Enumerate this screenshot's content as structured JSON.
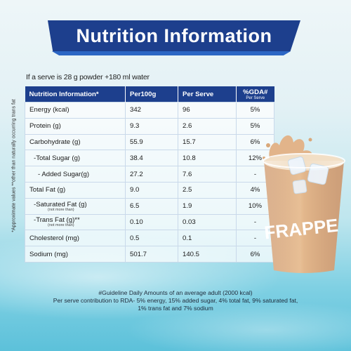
{
  "title": "Nutrition Information",
  "serve_note": "If a serve is 28 g powder +180 ml water",
  "side_note": "*Approximate values **other than naturally occurring trans fat",
  "table": {
    "headers": {
      "nutrient": "Nutrition Information*",
      "per100g": "Per100g",
      "per_serve": "Per Serve",
      "gda": "%GDA#",
      "gda_sub": "Per Serve"
    },
    "rows": [
      {
        "label": "Energy (kcal)",
        "note": "",
        "per100g": "342",
        "serve": "96",
        "gda": "5%"
      },
      {
        "label": "Protein (g)",
        "note": "",
        "per100g": "9.3",
        "serve": "2.6",
        "gda": "5%"
      },
      {
        "label": "Carbohydrate (g)",
        "note": "",
        "per100g": "55.9",
        "serve": "15.7",
        "gda": "6%"
      },
      {
        "label": "-Total Sugar (g)",
        "note": "",
        "per100g": "38.4",
        "serve": "10.8",
        "gda": "12%"
      },
      {
        "label": "- Added Sugar(g)",
        "note": "",
        "per100g": "27.2",
        "serve": "7.6",
        "gda": "-"
      },
      {
        "label": "Total Fat (g)",
        "note": "",
        "per100g": "9.0",
        "serve": "2.5",
        "gda": "4%"
      },
      {
        "label": "-Saturated Fat (g)",
        "note": "(not more than)",
        "per100g": "6.5",
        "serve": "1.9",
        "gda": "10%"
      },
      {
        "label": "-Trans Fat (g)**",
        "note": "(not more than)",
        "per100g": "0.10",
        "serve": "0.03",
        "gda": "-"
      },
      {
        "label": "Cholesterol (mg)",
        "note": "",
        "per100g": "0.5",
        "serve": "0.1",
        "gda": "-"
      },
      {
        "label": "Sodium (mg)",
        "note": "",
        "per100g": "501.7",
        "serve": "140.5",
        "gda": "6%"
      }
    ]
  },
  "footer": {
    "line1": "#Guideline Daily Amounts of an average adult (2000 kcal)",
    "line2": "Per serve contribution to RDA- 5% energy, 15% added sugar, 4% total fat, 9% saturated fat,",
    "line3": "1% trans fat and 7% sodium"
  },
  "cup_text": "FRAPPE",
  "colors": {
    "header_blue": "#1d3f8d",
    "coffee": "#d9a87a",
    "foam": "#f3e2cc"
  }
}
